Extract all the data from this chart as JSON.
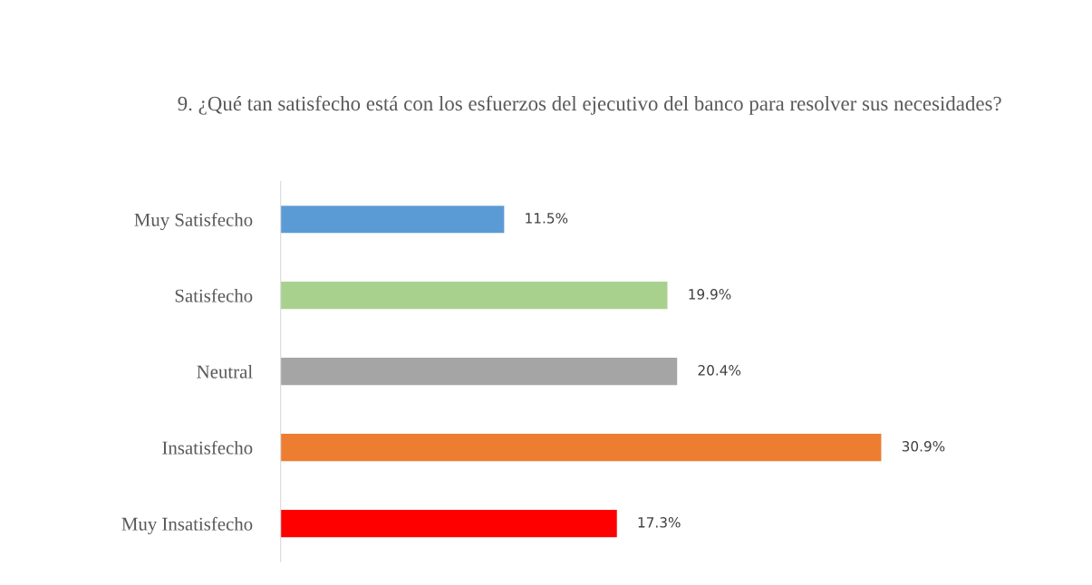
{
  "chart_data": {
    "type": "bar",
    "orientation": "horizontal",
    "title": "9. ¿Qué tan satisfecho está con los esfuerzos del ejecutivo del banco para resolver sus necesidades?",
    "categories": [
      "Muy Satisfecho",
      "Satisfecho",
      "Neutral",
      "Insatisfecho",
      "Muy Insatisfecho"
    ],
    "values": [
      11.5,
      19.9,
      20.4,
      30.9,
      17.3
    ],
    "colors": [
      "#5b9bd5",
      "#a9d18e",
      "#a5a5a5",
      "#ed7d31",
      "#ff0000"
    ],
    "value_labels": [
      "11.5%",
      "19.9%",
      "20.4%",
      "30.9%",
      "17.3%"
    ],
    "grid": false,
    "legend": false,
    "tick_labels": "y"
  }
}
